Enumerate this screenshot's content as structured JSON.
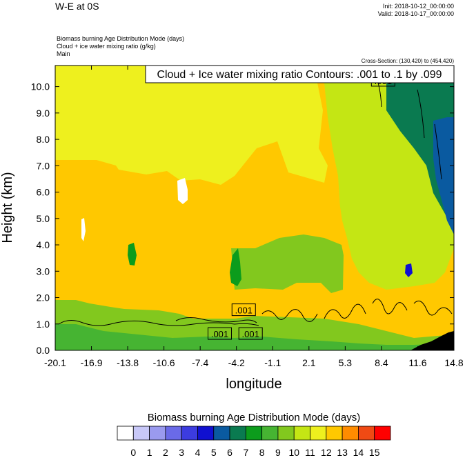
{
  "header": {
    "title_left": "W-E at 0S",
    "init": "Init: 2018-10-12_00:00:00",
    "valid": "Valid: 2018-10-17_00:00:00",
    "desc1": "Biomass burning Age Distribution Mode   (days)",
    "desc2": "Cloud + ice water mixing ratio   (g/kg)",
    "desc3": "Main",
    "cross_section": "Cross-Section: (130,420) to (454,420)"
  },
  "chart_data": {
    "type": "heatmap",
    "title": "Cloud + Ice water mixing ratio Contours: .001 to .1 by .099",
    "xlabel": "longitude",
    "ylabel": "Height (km)",
    "xlim": [
      -20.1,
      14.8
    ],
    "ylim": [
      0.0,
      10.8
    ],
    "xticks": [
      "-20.1",
      "-16.9",
      "-13.8",
      "-10.6",
      "-7.4",
      "-4.2",
      "-1.1",
      "2.1",
      "5.3",
      "8.4",
      "11.6",
      "14.8"
    ],
    "yticks": [
      "0.0",
      "1.0",
      "2.0",
      "3.0",
      "4.0",
      "5.0",
      "6.0",
      "7.0",
      "8.0",
      "9.0",
      "10.0"
    ],
    "contour_labels": [
      {
        "text": ".001",
        "x": -5.7,
        "y": 0.6
      },
      {
        "text": ".001",
        "x": -3.6,
        "y": 1.5
      },
      {
        "text": ".001",
        "x": -3.0,
        "y": 0.6
      },
      {
        "text": ".001",
        "x": 8.6,
        "y": 10.2
      }
    ],
    "colorbar": {
      "title": "Biomass burning Age Distribution Mode  (days)",
      "labels": [
        "0",
        "1",
        "2",
        "3",
        "4",
        "5",
        "6",
        "7",
        "8",
        "9",
        "10",
        "11",
        "12",
        "13",
        "14",
        "15"
      ],
      "colors": [
        "#ffffff",
        "#c8c8f8",
        "#9a9aef",
        "#6a6ae8",
        "#3c3ce0",
        "#1010d0",
        "#0a5aa0",
        "#0a7a50",
        "#0c9c1c",
        "#46b432",
        "#82c81e",
        "#c4e614",
        "#eef01e",
        "#ffc800",
        "#ff8c00",
        "#f04a14",
        "#ff0000"
      ]
    },
    "grid": false
  }
}
